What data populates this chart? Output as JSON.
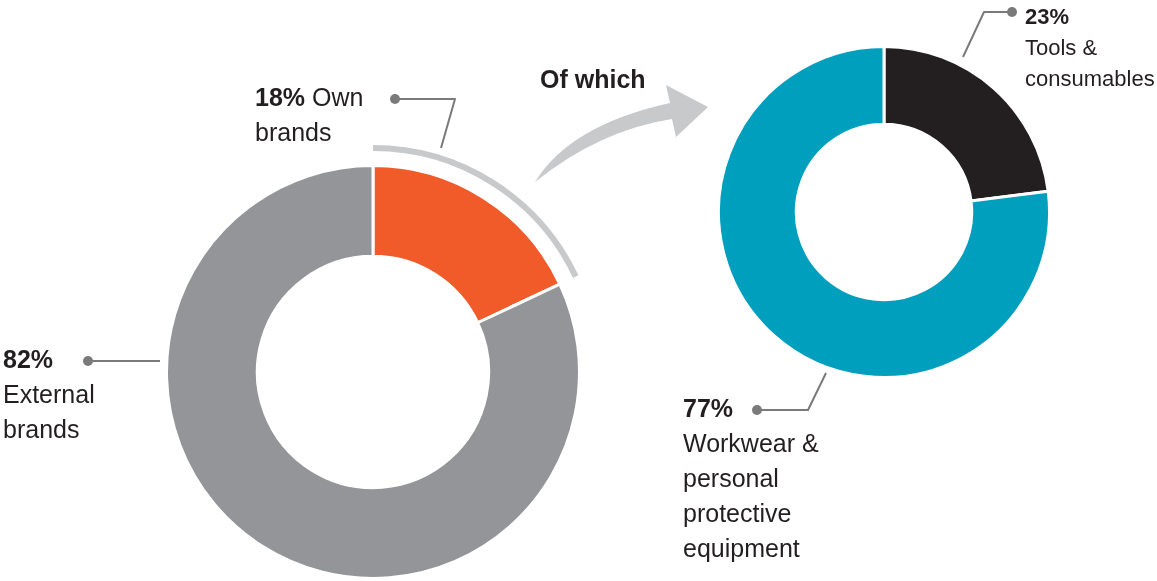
{
  "chart_data": [
    {
      "type": "donut",
      "categories": [
        "Own brands",
        "External brands"
      ],
      "values": [
        18,
        82
      ],
      "colors": [
        "#f15a29",
        "#939598"
      ],
      "value_labels": [
        "18%",
        "82%"
      ]
    },
    {
      "type": "donut",
      "categories": [
        "Tools & consumables",
        "Workwear & personal protective equipment"
      ],
      "values": [
        23,
        77
      ],
      "colors": [
        "#231f20",
        "#009fbd"
      ],
      "value_labels": [
        "23%",
        "77%"
      ],
      "annotations": [
        "Of which"
      ]
    }
  ]
}
